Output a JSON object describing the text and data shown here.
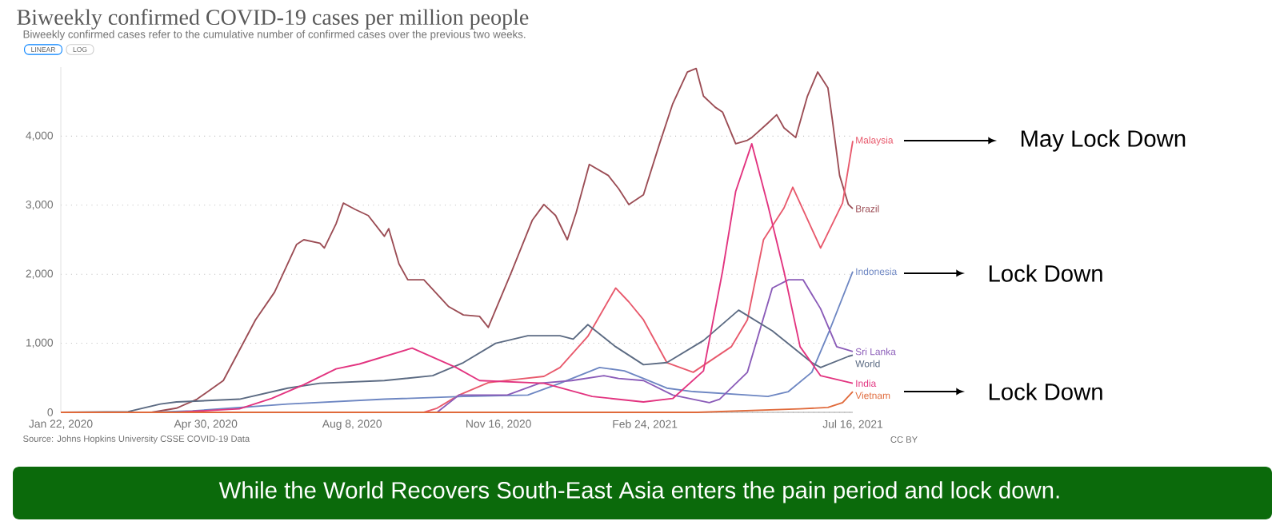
{
  "chart_data": {
    "type": "line",
    "title": "Biweekly confirmed COVID-19 cases per million people",
    "subtitle": "Biweekly confirmed cases refer to the cumulative number of confirmed cases over the previous two weeks.",
    "xlim": [
      "2020-01-22",
      "2021-07-16"
    ],
    "xticks": [
      {
        "value": "2020-01-22",
        "label": "Jan 22, 2020"
      },
      {
        "value": "2020-04-30",
        "label": "Apr 30, 2020"
      },
      {
        "value": "2020-08-08",
        "label": "Aug 8, 2020"
      },
      {
        "value": "2020-11-16",
        "label": "Nov 16, 2020"
      },
      {
        "value": "2021-02-24",
        "label": "Feb 24, 2021"
      },
      {
        "value": "2021-07-16",
        "label": "Jul 16, 2021"
      }
    ],
    "ylim": [
      0,
      5000
    ],
    "yticks": [
      0,
      {
        "value": 1000,
        "label": "1,000"
      },
      {
        "value": 2000,
        "label": "2,000"
      },
      {
        "value": 3000,
        "label": "3,000"
      },
      {
        "value": 4000,
        "label": "4,000"
      }
    ],
    "grid": "y",
    "series": [
      {
        "name": "Brazil",
        "color": "#9b4c54",
        "x": [
          "2020-01-22",
          "2020-03-24",
          "2020-04-10",
          "2020-04-24",
          "2020-05-12",
          "2020-06-03",
          "2020-06-16",
          "2020-07-01",
          "2020-07-06",
          "2020-07-17",
          "2020-07-20",
          "2020-07-28",
          "2020-08-02",
          "2020-08-10",
          "2020-08-19",
          "2020-08-30",
          "2020-09-02",
          "2020-09-09",
          "2020-09-15",
          "2020-09-26",
          "2020-10-13",
          "2020-10-23",
          "2020-11-03",
          "2020-11-09",
          "2020-11-25",
          "2020-12-09",
          "2020-12-17",
          "2020-12-25",
          "2021-01-02",
          "2021-01-08",
          "2021-01-17",
          "2021-01-30",
          "2021-02-06",
          "2021-02-13",
          "2021-02-23",
          "2021-03-06",
          "2021-03-15",
          "2021-03-25",
          "2021-03-31",
          "2021-04-05",
          "2021-04-13",
          "2021-04-18",
          "2021-04-27",
          "2021-05-05",
          "2021-05-08",
          "2021-05-19",
          "2021-05-25",
          "2021-05-30",
          "2021-06-07",
          "2021-06-15",
          "2021-06-22",
          "2021-06-29",
          "2021-07-02",
          "2021-07-07",
          "2021-07-13",
          "2021-07-16"
        ],
        "values": [
          0,
          0,
          60,
          190,
          460,
          1340,
          1740,
          2430,
          2500,
          2450,
          2380,
          2730,
          3030,
          2940,
          2850,
          2550,
          2660,
          2150,
          1920,
          1920,
          1530,
          1410,
          1390,
          1230,
          2040,
          2780,
          3010,
          2850,
          2500,
          2890,
          3590,
          3430,
          3240,
          3010,
          3150,
          3890,
          4470,
          4930,
          4980,
          4580,
          4420,
          4350,
          3890,
          3940,
          3980,
          4190,
          4310,
          4120,
          3980,
          4580,
          4930,
          4700,
          4240,
          3430,
          3010,
          2950
        ]
      },
      {
        "name": "Malaysia",
        "color": "#e8596c",
        "x": [
          "2020-01-22",
          "2020-09-26",
          "2020-10-05",
          "2020-10-20",
          "2020-11-09",
          "2020-11-25",
          "2020-12-17",
          "2020-12-28",
          "2021-01-16",
          "2021-02-04",
          "2021-02-13",
          "2021-02-23",
          "2021-03-11",
          "2021-03-29",
          "2021-04-24",
          "2021-05-05",
          "2021-05-16",
          "2021-05-30",
          "2021-06-05",
          "2021-06-24",
          "2021-07-09",
          "2021-07-16"
        ],
        "values": [
          0,
          0,
          60,
          250,
          430,
          470,
          520,
          650,
          1100,
          1800,
          1600,
          1340,
          720,
          580,
          950,
          1340,
          2500,
          2960,
          3260,
          2380,
          3030,
          3930
        ]
      },
      {
        "name": "Indonesia",
        "color": "#6d86c2",
        "x": [
          "2020-01-22",
          "2020-03-24",
          "2020-04-21",
          "2020-06-25",
          "2020-08-30",
          "2020-10-23",
          "2020-12-06",
          "2020-12-28",
          "2021-01-24",
          "2021-02-10",
          "2021-02-23",
          "2021-03-11",
          "2021-03-29",
          "2021-05-05",
          "2021-05-19",
          "2021-06-02",
          "2021-06-18",
          "2021-06-30",
          "2021-07-16"
        ],
        "values": [
          0,
          0,
          20,
          120,
          190,
          230,
          250,
          420,
          650,
          600,
          490,
          350,
          300,
          250,
          230,
          300,
          580,
          1180,
          2040
        ]
      },
      {
        "name": "Sri Lanka",
        "color": "#8a5bb8",
        "x": [
          "2020-01-22",
          "2020-10-05",
          "2020-10-20",
          "2020-11-22",
          "2020-12-14",
          "2021-01-05",
          "2021-01-27",
          "2021-02-06",
          "2021-02-23",
          "2021-03-15",
          "2021-04-09",
          "2021-04-16",
          "2021-05-05",
          "2021-05-22",
          "2021-06-02",
          "2021-06-12",
          "2021-06-24",
          "2021-07-05",
          "2021-07-16"
        ],
        "values": [
          0,
          0,
          250,
          250,
          420,
          460,
          530,
          490,
          460,
          250,
          140,
          190,
          580,
          1800,
          1920,
          1920,
          1500,
          950,
          880
        ]
      },
      {
        "name": "World",
        "color": "#5b6a82",
        "x": [
          "2020-01-22",
          "2020-03-08",
          "2020-03-30",
          "2020-04-10",
          "2020-05-23",
          "2020-06-25",
          "2020-07-17",
          "2020-08-30",
          "2020-10-02",
          "2020-10-23",
          "2020-11-14",
          "2020-12-06",
          "2020-12-28",
          "2021-01-06",
          "2021-01-16",
          "2021-02-04",
          "2021-02-23",
          "2021-03-11",
          "2021-04-05",
          "2021-04-29",
          "2021-05-22",
          "2021-06-18",
          "2021-06-24",
          "2021-07-13",
          "2021-07-16"
        ],
        "values": [
          0,
          10,
          120,
          150,
          190,
          350,
          420,
          460,
          530,
          720,
          1000,
          1110,
          1110,
          1060,
          1270,
          950,
          690,
          720,
          1040,
          1480,
          1180,
          720,
          650,
          810,
          830
        ]
      },
      {
        "name": "India",
        "color": "#e2337f",
        "x": [
          "2020-01-22",
          "2020-04-10",
          "2020-05-23",
          "2020-06-14",
          "2020-07-06",
          "2020-07-28",
          "2020-08-13",
          "2020-09-18",
          "2020-10-18",
          "2020-11-03",
          "2020-12-17",
          "2021-01-19",
          "2021-02-23",
          "2021-03-15",
          "2021-04-05",
          "2021-04-18",
          "2021-04-27",
          "2021-05-08",
          "2021-05-19",
          "2021-05-30",
          "2021-06-10",
          "2021-06-24",
          "2021-07-16"
        ],
        "values": [
          0,
          0,
          50,
          200,
          400,
          630,
          700,
          930,
          650,
          460,
          420,
          230,
          150,
          200,
          600,
          2040,
          3200,
          3890,
          3000,
          2040,
          950,
          530,
          420
        ]
      },
      {
        "name": "Vietnam",
        "color": "#e06a3b",
        "x": [
          "2020-01-22",
          "2021-04-01",
          "2021-06-10",
          "2021-06-29",
          "2021-07-09",
          "2021-07-16"
        ],
        "values": [
          0,
          0,
          50,
          70,
          140,
          300
        ]
      }
    ],
    "annotations": [
      "May Lock Down",
      "Lock Down",
      "Lock Down",
      "Source: Johns Hopkins University CSSE COVID-19 Data",
      "CC BY",
      "While the World Recovers South-East Asia enters the pain period and lock down.",
      "LINEAR",
      "LOG"
    ]
  }
}
